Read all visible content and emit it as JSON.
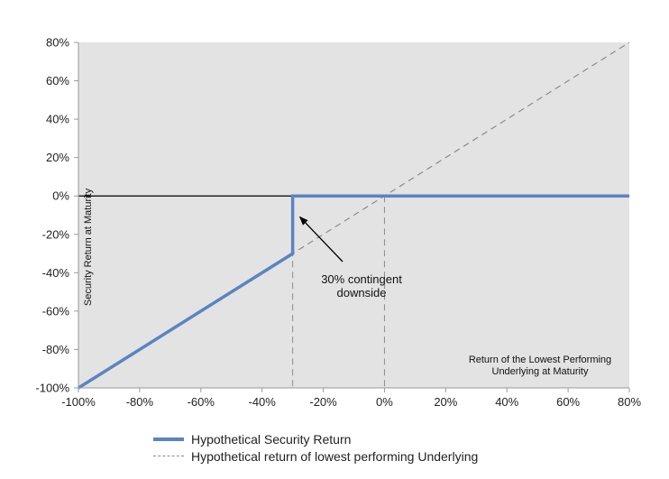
{
  "chart_data": {
    "type": "line",
    "title": "",
    "xlabel": "Return of the Lowest Performing Underlying at Maturity",
    "xlabel_lines": [
      "Return of the Lowest Performing",
      "Underlying at Maturity"
    ],
    "ylabel": "Security Return at Maturity",
    "xlim": [
      -100,
      80
    ],
    "ylim": [
      -100,
      80
    ],
    "x_ticks": [
      -100,
      -80,
      -60,
      -40,
      -20,
      0,
      20,
      40,
      60,
      80
    ],
    "y_ticks": [
      -100,
      -80,
      -60,
      -40,
      -20,
      0,
      20,
      40,
      60,
      80
    ],
    "x_tick_labels": [
      "-100%",
      "-80%",
      "-60%",
      "-40%",
      "-20%",
      "0%",
      "20%",
      "40%",
      "60%",
      "80%"
    ],
    "y_tick_labels": [
      "-100%",
      "-80%",
      "-60%",
      "-40%",
      "-20%",
      "0%",
      "20%",
      "40%",
      "60%",
      "80%"
    ],
    "grid": false,
    "plot_background": "#e3e3e3",
    "legend_position": "bottom",
    "series": [
      {
        "name": "Hypothetical Security Return",
        "style": "solid",
        "color": "#5b84c0",
        "points": [
          [
            -100,
            -100
          ],
          [
            -30,
            -30
          ],
          [
            -30,
            0
          ],
          [
            80,
            0
          ]
        ]
      },
      {
        "name": "Hypothetical return of lowest performing Underlying",
        "style": "dashed",
        "color": "#8c8c8c",
        "points": [
          [
            -100,
            -100
          ],
          [
            80,
            80
          ]
        ]
      }
    ],
    "reference_lines": [
      {
        "orientation": "horizontal",
        "value": 0,
        "style": "solid",
        "color": "#000000"
      },
      {
        "orientation": "vertical",
        "value": -30,
        "style": "dashed",
        "color": "#8c8c8c"
      },
      {
        "orientation": "vertical",
        "value": 0,
        "style": "dashed",
        "color": "#8c8c8c"
      }
    ],
    "annotations": [
      {
        "lines": [
          "30% contingent",
          "downside"
        ],
        "arrow_to": [
          -30,
          -10
        ]
      }
    ]
  }
}
